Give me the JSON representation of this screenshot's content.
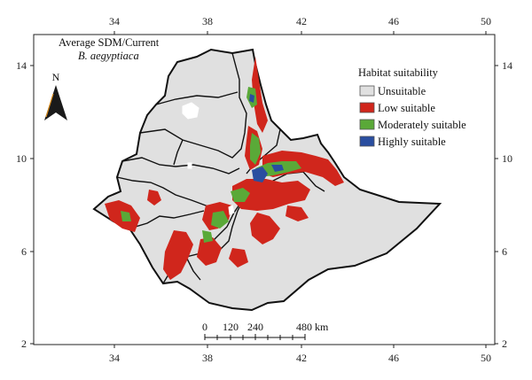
{
  "map": {
    "title": "Average SDM/Current",
    "species": "B. aegyptiaca",
    "north_label": "N",
    "longitude_ticks": [
      "34",
      "38",
      "42",
      "46",
      "50"
    ],
    "latitude_ticks": [
      "14",
      "10",
      "6",
      "2"
    ],
    "scale_bar": {
      "labels": [
        "0",
        "120",
        "240",
        "480 km"
      ]
    }
  },
  "legend": {
    "title": "Habitat suitability",
    "items": [
      {
        "label": "Unsuitable",
        "color": "#e0e0e0"
      },
      {
        "label": "Low suitable",
        "color": "#d0261c"
      },
      {
        "label": "Moderately suitable",
        "color": "#5aa938"
      },
      {
        "label": "Highly suitable",
        "color": "#2a4ea0"
      }
    ]
  },
  "colors": {
    "frame": "#222222",
    "country_fill": "#e0e0e0",
    "boundary": "#111111",
    "north_arrow": "#1a1a1a",
    "north_arrow_accent": "#d98b1a"
  }
}
